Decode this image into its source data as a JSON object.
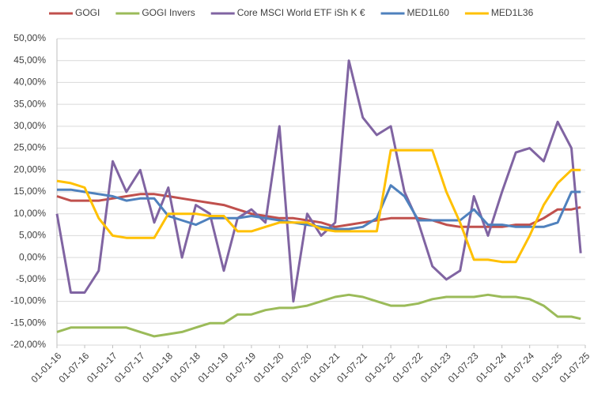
{
  "chart_data": {
    "type": "line",
    "x": [
      "2016-01-01",
      "2016-04-01",
      "2016-07-01",
      "2016-10-01",
      "2017-01-01",
      "2017-04-01",
      "2017-07-01",
      "2017-10-01",
      "2018-01-01",
      "2018-04-01",
      "2018-07-01",
      "2018-10-01",
      "2019-01-01",
      "2019-04-01",
      "2019-07-01",
      "2019-10-01",
      "2020-01-01",
      "2020-04-01",
      "2020-07-01",
      "2020-10-01",
      "2021-01-01",
      "2021-04-01",
      "2021-07-01",
      "2021-10-01",
      "2022-01-01",
      "2022-04-01",
      "2022-07-01",
      "2022-10-01",
      "2023-01-01",
      "2023-04-01",
      "2023-07-01",
      "2023-10-01",
      "2024-01-01",
      "2024-04-01",
      "2024-07-01",
      "2024-10-01",
      "2025-01-01",
      "2025-04-01",
      "2025-06-01"
    ],
    "series": [
      {
        "name": "GOGI",
        "color": "#c0504d",
        "values": [
          14,
          13,
          13,
          13,
          13.5,
          14,
          14.5,
          14.5,
          14,
          13.5,
          13,
          12.5,
          12,
          11,
          10,
          9.5,
          9,
          9,
          8.5,
          8,
          7,
          7.5,
          8,
          8.5,
          9,
          9,
          9,
          8.5,
          7.5,
          7,
          7,
          7,
          7,
          7.5,
          7.5,
          9,
          11,
          11,
          11.5
        ]
      },
      {
        "name": "GOGI Invers",
        "color": "#9bbb59",
        "values": [
          -17,
          -16,
          -16,
          -16,
          -16,
          -16,
          -17,
          -18,
          -17.5,
          -17,
          -16,
          -15,
          -15,
          -13,
          -13,
          -12,
          -11.5,
          -11.5,
          -11,
          -10,
          -9,
          -8.5,
          -9,
          -10,
          -11,
          -11,
          -10.5,
          -9.5,
          -9,
          -9,
          -9,
          -8.5,
          -9,
          -9,
          -9.5,
          -11,
          -13.5,
          -13.5,
          -14
        ]
      },
      {
        "name": "Core MSCI World ETF iSh K €",
        "color": "#8064a2",
        "values": [
          10,
          -8,
          -8,
          -3,
          22,
          15,
          20,
          8,
          16,
          0,
          12,
          10,
          -3,
          9,
          11,
          8,
          30,
          -10,
          10,
          5,
          8,
          45,
          32,
          28,
          30,
          15,
          8,
          -2,
          -5,
          -3,
          14,
          5,
          15,
          24,
          25,
          22,
          31,
          25,
          1
        ]
      },
      {
        "name": "MED1L60",
        "color": "#4f81bd",
        "values": [
          15.5,
          15.5,
          15,
          14.5,
          14,
          13,
          13.5,
          13.5,
          9.5,
          8.5,
          7.5,
          9,
          9,
          9,
          9.5,
          9,
          8.5,
          8,
          7.5,
          7,
          6.5,
          6.5,
          7,
          9,
          16.5,
          14,
          8.5,
          8.5,
          8.5,
          8.5,
          11,
          7.5,
          7.5,
          7,
          7,
          7,
          8,
          15,
          15
        ]
      },
      {
        "name": "MED1L36",
        "color": "#ffc000",
        "values": [
          17.5,
          17,
          16,
          9,
          5,
          4.5,
          4.5,
          4.5,
          10,
          10,
          10,
          9.5,
          9.5,
          6,
          6,
          7,
          8,
          8,
          8,
          6.5,
          6,
          6,
          6,
          6,
          24.5,
          24.5,
          24.5,
          24.5,
          15,
          8,
          -0.5,
          -0.5,
          -1,
          -1,
          5,
          12,
          17,
          20,
          20
        ]
      }
    ],
    "xlim": [
      "2016-01-01",
      "2025-07-01"
    ],
    "xticks": [
      {
        "value": "2016-01-01",
        "label": "01-01-16"
      },
      {
        "value": "2016-07-01",
        "label": "01-07-16"
      },
      {
        "value": "2017-01-01",
        "label": "01-01-17"
      },
      {
        "value": "2017-07-01",
        "label": "01-07-17"
      },
      {
        "value": "2018-01-01",
        "label": "01-01-18"
      },
      {
        "value": "2018-07-01",
        "label": "01-07-18"
      },
      {
        "value": "2019-01-01",
        "label": "01-01-19"
      },
      {
        "value": "2019-07-01",
        "label": "01-07-19"
      },
      {
        "value": "2020-01-01",
        "label": "01-01-20"
      },
      {
        "value": "2020-07-01",
        "label": "01-07-20"
      },
      {
        "value": "2021-01-01",
        "label": "01-01-21"
      },
      {
        "value": "2021-07-01",
        "label": "01-07-21"
      },
      {
        "value": "2022-01-01",
        "label": "01-01-22"
      },
      {
        "value": "2022-07-01",
        "label": "01-07-22"
      },
      {
        "value": "2023-01-01",
        "label": "01-01-23"
      },
      {
        "value": "2023-07-01",
        "label": "01-07-23"
      },
      {
        "value": "2024-01-01",
        "label": "01-01-24"
      },
      {
        "value": "2024-07-01",
        "label": "01-07-24"
      },
      {
        "value": "2025-01-01",
        "label": "01-01-25"
      },
      {
        "value": "2025-07-01",
        "label": "01-07-25"
      }
    ],
    "ylim": [
      -20,
      50
    ],
    "yticks": [
      {
        "value": -20,
        "label": "-20,00%"
      },
      {
        "value": -15,
        "label": "-15,00%"
      },
      {
        "value": -10,
        "label": "-10,00%"
      },
      {
        "value": -5,
        "label": "-5,00%"
      },
      {
        "value": 0,
        "label": "0,00%"
      },
      {
        "value": 5,
        "label": "5,00%"
      },
      {
        "value": 10,
        "label": "10,00%"
      },
      {
        "value": 15,
        "label": "15,00%"
      },
      {
        "value": 20,
        "label": "20,00%"
      },
      {
        "value": 25,
        "label": "25,00%"
      },
      {
        "value": 30,
        "label": "30,00%"
      },
      {
        "value": 35,
        "label": "35,00%"
      },
      {
        "value": 40,
        "label": "40,00%"
      },
      {
        "value": 45,
        "label": "45,00%"
      },
      {
        "value": 50,
        "label": "50,00%"
      }
    ],
    "grid": true,
    "legend": "top"
  }
}
